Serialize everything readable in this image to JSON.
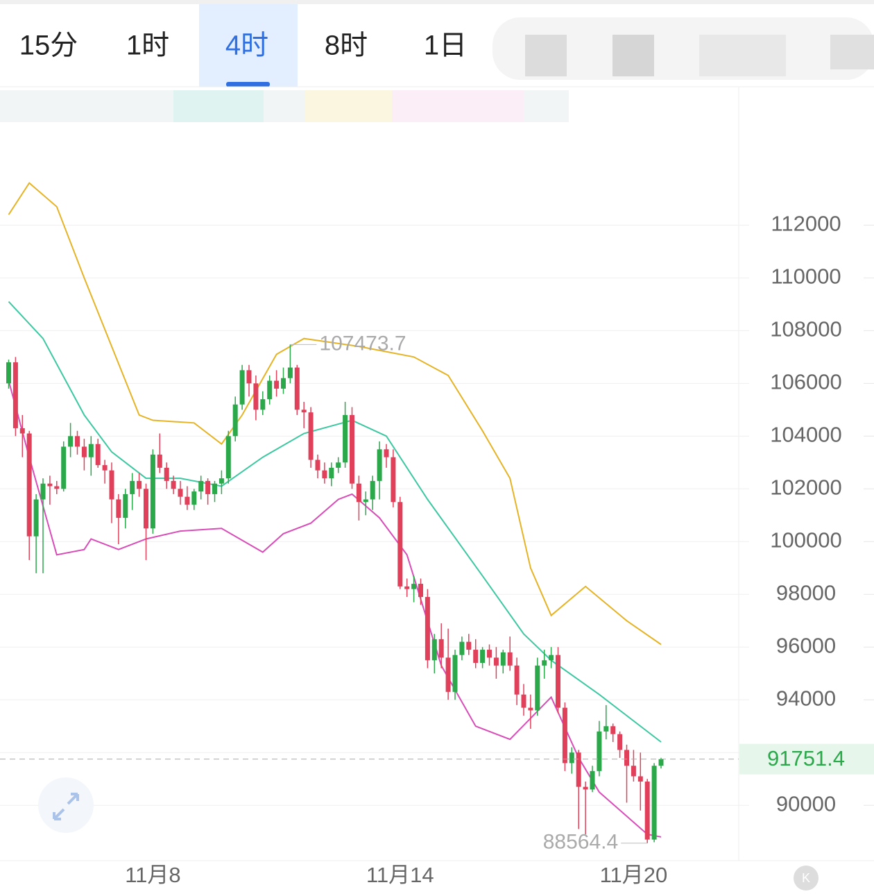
{
  "tabs": [
    "15分",
    "1时",
    "4时",
    "8时",
    "1日"
  ],
  "active_tab": 2,
  "chart_data": {
    "type": "candlestick",
    "categories": [
      null,
      null,
      null,
      null,
      null,
      null,
      null,
      null,
      null,
      null,
      null,
      null,
      null,
      null,
      null,
      null,
      null,
      null,
      null,
      null,
      null,
      "11月8",
      null,
      null,
      null,
      null,
      null,
      null,
      null,
      null,
      null,
      null,
      null,
      null,
      null,
      null,
      null,
      null,
      null,
      null,
      null,
      null,
      null,
      null,
      null,
      null,
      null,
      null,
      null,
      null,
      null,
      null,
      null,
      null,
      null,
      null,
      null,
      "11月14",
      null,
      null,
      null,
      null,
      null,
      null,
      null,
      null,
      null,
      null,
      null,
      null,
      null,
      null,
      null,
      null,
      null,
      null,
      null,
      null,
      null,
      null,
      null,
      null,
      null,
      null,
      null,
      null,
      null,
      null,
      null,
      null,
      null,
      "11月20",
      null,
      null
    ],
    "ohlc": [
      [
        106000,
        106900,
        105800,
        106800
      ],
      [
        106800,
        107000,
        104000,
        104300
      ],
      [
        104300,
        104800,
        103200,
        104100
      ],
      [
        104100,
        104200,
        99300,
        100200
      ],
      [
        100200,
        101800,
        98800,
        101600
      ],
      [
        101600,
        102400,
        98800,
        102200
      ],
      [
        102200,
        102500,
        101400,
        102100
      ],
      [
        102100,
        102300,
        101800,
        102000
      ],
      [
        102000,
        103800,
        101900,
        103600
      ],
      [
        103600,
        104500,
        103200,
        104000
      ],
      [
        104000,
        104200,
        103300,
        103600
      ],
      [
        103600,
        103900,
        102700,
        103200
      ],
      [
        103200,
        104000,
        102500,
        103700
      ],
      [
        103700,
        103900,
        102800,
        102900
      ],
      [
        102900,
        103100,
        102200,
        102700
      ],
      [
        102700,
        103000,
        100700,
        101600
      ],
      [
        101600,
        101800,
        99900,
        100900
      ],
      [
        100900,
        102000,
        100500,
        101800
      ],
      [
        101800,
        102600,
        101200,
        102300
      ],
      [
        102300,
        102600,
        101700,
        102000
      ],
      [
        102000,
        102200,
        99300,
        100500
      ],
      [
        100500,
        103500,
        100300,
        103300
      ],
      [
        103300,
        104100,
        102600,
        102800
      ],
      [
        102800,
        103000,
        102000,
        102300
      ],
      [
        102300,
        102500,
        101800,
        102000
      ],
      [
        102000,
        102300,
        101400,
        101700
      ],
      [
        101700,
        102100,
        101200,
        101400
      ],
      [
        101400,
        102000,
        101200,
        101900
      ],
      [
        101900,
        102500,
        101600,
        102300
      ],
      [
        102300,
        102400,
        101400,
        101800
      ],
      [
        101800,
        102300,
        101500,
        102200
      ],
      [
        102200,
        102700,
        101800,
        102400
      ],
      [
        102400,
        104200,
        102200,
        104000
      ],
      [
        104000,
        105500,
        103800,
        105200
      ],
      [
        105200,
        106700,
        105000,
        106500
      ],
      [
        106500,
        106700,
        105500,
        106000
      ],
      [
        106000,
        106300,
        104600,
        105000
      ],
      [
        105000,
        105700,
        104800,
        105400
      ],
      [
        105400,
        106300,
        105200,
        106100
      ],
      [
        106100,
        106500,
        105500,
        105800
      ],
      [
        105800,
        106600,
        105600,
        106200
      ],
      [
        106200,
        107473.7,
        106000,
        106600
      ],
      [
        106600,
        106700,
        104800,
        105000
      ],
      [
        105000,
        105300,
        104300,
        104900
      ],
      [
        104900,
        105100,
        102800,
        103100
      ],
      [
        103100,
        103300,
        102400,
        102700
      ],
      [
        102700,
        103000,
        102200,
        102400
      ],
      [
        102400,
        103000,
        102100,
        102800
      ],
      [
        102800,
        103200,
        102600,
        103000
      ],
      [
        103000,
        105300,
        102800,
        104800
      ],
      [
        104800,
        105100,
        102000,
        102200
      ],
      [
        102200,
        102500,
        100800,
        101500
      ],
      [
        101500,
        101900,
        101000,
        101600
      ],
      [
        101600,
        102500,
        101200,
        102300
      ],
      [
        102300,
        103800,
        101600,
        103500
      ],
      [
        103500,
        103700,
        102800,
        103200
      ],
      [
        103200,
        103500,
        101300,
        101500
      ],
      [
        101500,
        101700,
        98200,
        98300
      ],
      [
        98300,
        98600,
        97900,
        98200
      ],
      [
        98200,
        98700,
        97700,
        98400
      ],
      [
        98400,
        98600,
        97600,
        97900
      ],
      [
        97900,
        98200,
        95200,
        95500
      ],
      [
        95500,
        96500,
        95000,
        96300
      ],
      [
        96300,
        96900,
        95200,
        95600
      ],
      [
        95600,
        96700,
        94000,
        94300
      ],
      [
        94300,
        95900,
        94000,
        95700
      ],
      [
        95700,
        96400,
        95500,
        96200
      ],
      [
        96200,
        96500,
        95700,
        95900
      ],
      [
        95900,
        96300,
        95200,
        95400
      ],
      [
        95400,
        96000,
        95200,
        95900
      ],
      [
        95900,
        96100,
        95300,
        95600
      ],
      [
        95600,
        96000,
        94800,
        95300
      ],
      [
        95300,
        95900,
        95000,
        95800
      ],
      [
        95800,
        96400,
        95100,
        95300
      ],
      [
        95300,
        95600,
        93800,
        94200
      ],
      [
        94200,
        94600,
        93400,
        93700
      ],
      [
        93700,
        94200,
        92900,
        93600
      ],
      [
        93600,
        95600,
        93400,
        95300
      ],
      [
        95300,
        95900,
        94800,
        95500
      ],
      [
        95500,
        96000,
        95200,
        95700
      ],
      [
        95700,
        96000,
        93500,
        93700
      ],
      [
        93700,
        93900,
        91300,
        91600
      ],
      [
        91600,
        92200,
        91200,
        92000
      ],
      [
        92000,
        92100,
        89100,
        90700
      ],
      [
        90700,
        90900,
        88900,
        90600
      ],
      [
        90600,
        91500,
        90500,
        91300
      ],
      [
        91300,
        93200,
        91100,
        92800
      ],
      [
        92800,
        93800,
        92500,
        93000
      ],
      [
        93000,
        93100,
        92400,
        92700
      ],
      [
        92700,
        92800,
        91800,
        92100
      ],
      [
        92100,
        92300,
        90100,
        91500
      ],
      [
        91500,
        92100,
        90900,
        91100
      ],
      [
        91100,
        92000,
        89800,
        90900
      ],
      [
        90900,
        91000,
        88564.4,
        88700
      ],
      [
        88700,
        91600,
        88600,
        91500
      ],
      [
        91500,
        91800,
        91400,
        91751.4
      ]
    ],
    "up_color": "#2aa84a",
    "down_color": "#e0405a",
    "indicators": [
      {
        "color": "#e6b325",
        "x": [
          0,
          3,
          7,
          11,
          15,
          19,
          21,
          27,
          31,
          34,
          39,
          43,
          51,
          59,
          64,
          69,
          73,
          76,
          79,
          84,
          90,
          95
        ],
        "values": [
          112400,
          113600,
          112700,
          110000,
          107400,
          104800,
          104600,
          104500,
          103700,
          104800,
          107100,
          107700,
          107400,
          107000,
          106300,
          104200,
          102400,
          99000,
          97200,
          98300,
          97000,
          96100
        ]
      },
      {
        "color": "#3cc8a0",
        "x": [
          0,
          5,
          11,
          15,
          20,
          25,
          31,
          37,
          43,
          50,
          55,
          61,
          69,
          75,
          79,
          86,
          95
        ],
        "values": [
          109100,
          107700,
          104800,
          103400,
          102400,
          102400,
          102100,
          103200,
          104100,
          104600,
          104000,
          101600,
          98700,
          96500,
          95500,
          94200,
          92400
        ]
      },
      {
        "color": "#d94cb8",
        "x": [
          0,
          3,
          7,
          11,
          12,
          16,
          20,
          25,
          31,
          37,
          40,
          44,
          48,
          50,
          54,
          58,
          63,
          68,
          73,
          79,
          83,
          86,
          93,
          95
        ],
        "values": [
          106100,
          103200,
          99500,
          99700,
          100100,
          99700,
          100100,
          100400,
          100500,
          99600,
          100300,
          100700,
          101600,
          101800,
          100900,
          99500,
          95300,
          93000,
          92500,
          94100,
          91800,
          90500,
          88900,
          88800
        ]
      }
    ],
    "ylim": [
      87900,
      115800
    ],
    "yticks": [
      90000,
      92000,
      94000,
      96000,
      98000,
      100000,
      102000,
      104000,
      106000,
      108000,
      110000,
      112000
    ],
    "ytick_labels_shown": [
      90000,
      94000,
      96000,
      98000,
      100000,
      102000,
      104000,
      106000,
      108000,
      110000,
      112000
    ],
    "grid": true
  }
}
